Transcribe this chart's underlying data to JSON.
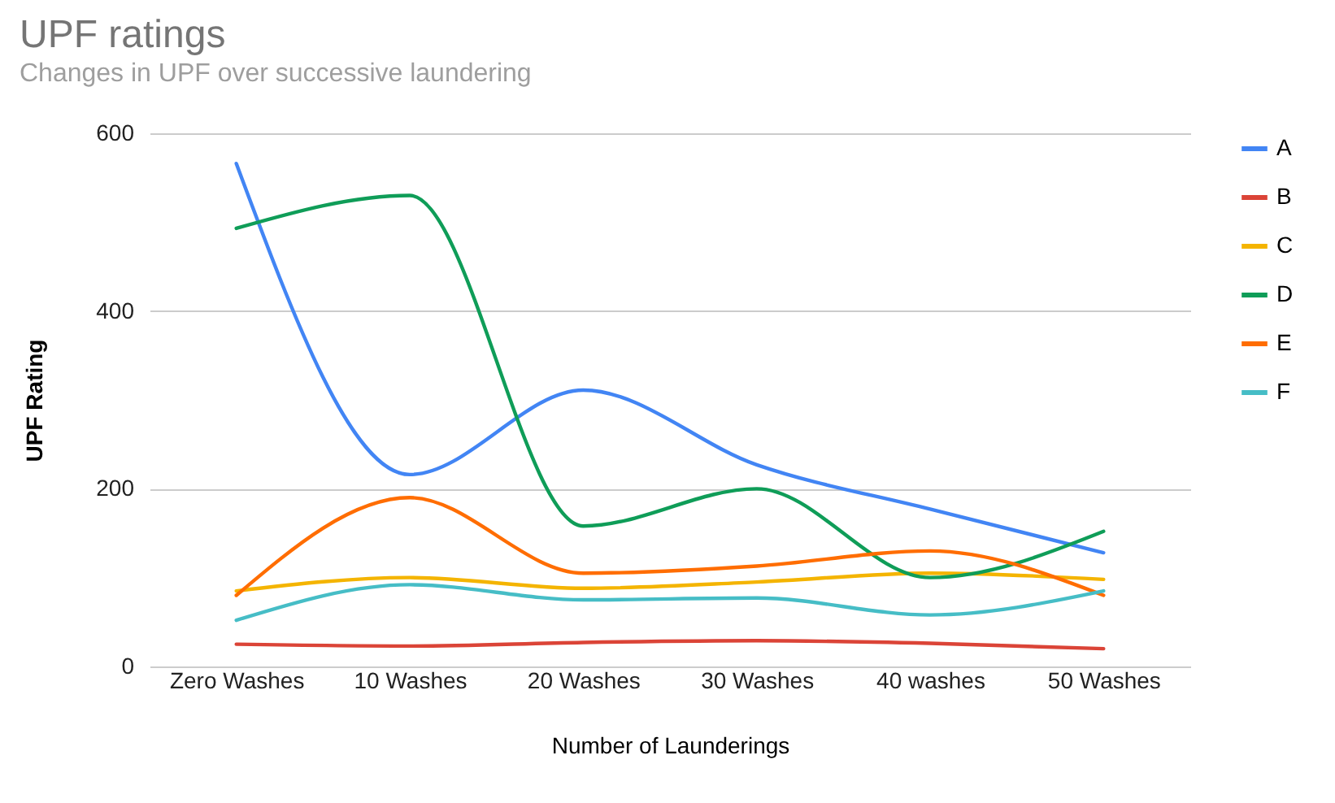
{
  "chart_data": {
    "type": "line",
    "title": "UPF ratings",
    "subtitle": "Changes in UPF over successive laundering",
    "xlabel": "Number of Launderings",
    "ylabel": "UPF Rating",
    "categories": [
      "Zero Washes",
      "10 Washes",
      "20 Washes",
      "30 Washes",
      "40 washes",
      "50 Washes"
    ],
    "series": [
      {
        "name": "A",
        "color": "#4285f4",
        "values": [
          566,
          216,
          311,
          227,
          177,
          128
        ]
      },
      {
        "name": "B",
        "color": "#db4437",
        "values": [
          25,
          23,
          27,
          29,
          26,
          20
        ]
      },
      {
        "name": "C",
        "color": "#f4b400",
        "values": [
          85,
          100,
          88,
          95,
          105,
          98
        ]
      },
      {
        "name": "D",
        "color": "#0f9d58",
        "values": [
          493,
          530,
          158,
          200,
          100,
          152
        ]
      },
      {
        "name": "E",
        "color": "#ff6d01",
        "values": [
          80,
          190,
          105,
          113,
          130,
          80
        ]
      },
      {
        "name": "F",
        "color": "#46bdc6",
        "values": [
          52,
          92,
          75,
          77,
          58,
          85
        ]
      }
    ],
    "ylim": [
      0,
      600
    ],
    "yticks": [
      0,
      200,
      400,
      600
    ],
    "grid": "y",
    "legend": "right",
    "marker": "none",
    "line_style": "solid"
  }
}
